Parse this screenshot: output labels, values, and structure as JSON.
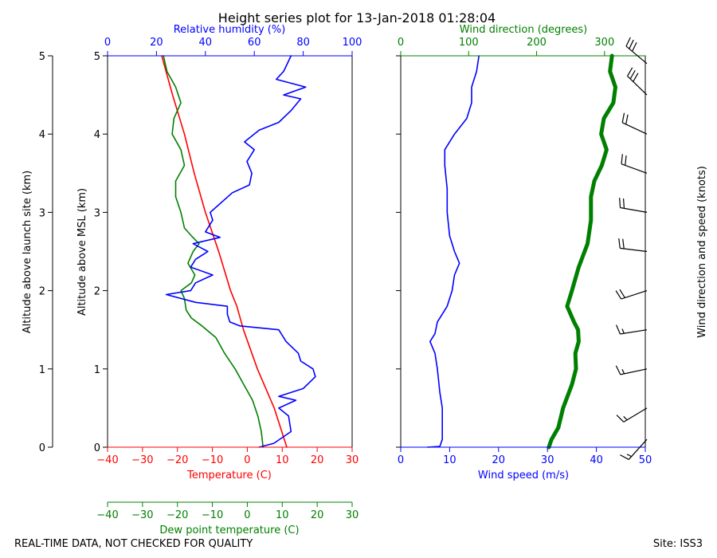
{
  "chart_data": {
    "type": "line",
    "title": "Height series plot for 13-Jan-2018 01:28:04",
    "colors": {
      "temperature": "#ff0000",
      "dewpoint": "#008000",
      "humidity": "#0000ff",
      "wind_speed": "#0000ff",
      "wind_direction": "#008000",
      "barb": "#000000",
      "axis": "#000000"
    },
    "altitude_axes": {
      "launch_label": "Altitude above launch site (km)",
      "msl_label": "Altitude above MSL (km)",
      "ticks": [
        "0",
        "1",
        "2",
        "3",
        "4",
        "5"
      ],
      "range": [
        0,
        5
      ]
    },
    "temperature_axis": {
      "label": "Temperature (C)",
      "range": [
        -40,
        30
      ],
      "ticks": [
        "−40",
        "−30",
        "−20",
        "−10",
        "0",
        "10",
        "20",
        "30"
      ]
    },
    "dewpoint_axis": {
      "label": "Dew point temperature (C)",
      "range": [
        -40,
        30
      ],
      "ticks": [
        "−40",
        "−30",
        "−20",
        "−10",
        "0",
        "10",
        "20",
        "30"
      ]
    },
    "humidity_axis": {
      "label": "Relative humidity (%)",
      "range": [
        0,
        100
      ],
      "ticks": [
        "0",
        "20",
        "40",
        "60",
        "80",
        "100"
      ]
    },
    "wind_speed_axis": {
      "label": "Wind speed (m/s)",
      "range": [
        0,
        50
      ],
      "ticks": [
        "0",
        "10",
        "20",
        "30",
        "40",
        "50"
      ]
    },
    "wind_direction_axis": {
      "label": "Wind direction (degrees)",
      "range": [
        0,
        360
      ],
      "ticks": [
        "0",
        "100",
        "200",
        "300"
      ]
    },
    "barb_label": "Wind direction and speed (knots)",
    "series": [
      {
        "name": "Temperature",
        "axis": "temperature",
        "alt_km": [
          0,
          0.5,
          1,
          1.5,
          1.8,
          2,
          2.5,
          3,
          3.5,
          4,
          4.5,
          5
        ],
        "values": [
          11.3,
          7.7,
          2.9,
          -1.1,
          -3,
          -4.8,
          -8.2,
          -12,
          -15.2,
          -18,
          -21.4,
          -24.5
        ]
      },
      {
        "name": "Dew point",
        "axis": "dewpoint",
        "alt_km": [
          0,
          0.2,
          0.4,
          0.6,
          0.8,
          1,
          1.2,
          1.4,
          1.55,
          1.65,
          1.75,
          1.9,
          2,
          2.1,
          2.2,
          2.35,
          2.5,
          2.6,
          2.7,
          2.8,
          3,
          3.2,
          3.4,
          3.6,
          3.8,
          4,
          4.2,
          4.4,
          4.6,
          4.8,
          5
        ],
        "values": [
          4.5,
          4,
          3,
          1.5,
          -1,
          -3.5,
          -6.5,
          -9,
          -13,
          -16,
          -17.5,
          -18,
          -19,
          -16,
          -15,
          -17,
          -15.5,
          -13.8,
          -16,
          -18,
          -19,
          -20.5,
          -20.5,
          -18,
          -19,
          -21.5,
          -21,
          -19,
          -20.5,
          -23,
          -24
        ]
      },
      {
        "name": "Relative humidity",
        "axis": "humidity",
        "alt_km": [
          0,
          0.05,
          0.2,
          0.4,
          0.5,
          0.6,
          0.65,
          0.75,
          0.9,
          1,
          1.1,
          1.2,
          1.35,
          1.5,
          1.55,
          1.6,
          1.7,
          1.8,
          1.85,
          1.95,
          2,
          2.1,
          2.2,
          2.3,
          2.4,
          2.5,
          2.6,
          2.68,
          2.75,
          2.9,
          3,
          3.25,
          3.35,
          3.5,
          3.65,
          3.8,
          3.9,
          4.05,
          4.15,
          4.3,
          4.45,
          4.5,
          4.6,
          4.7,
          4.8,
          5
        ],
        "values": [
          62,
          68,
          75,
          74,
          70,
          77,
          70,
          80,
          85,
          84,
          79,
          78,
          73,
          70,
          54,
          50,
          49,
          49,
          36,
          24,
          34,
          36,
          43,
          34,
          36,
          41,
          35,
          46,
          40,
          43,
          42,
          51,
          58,
          59,
          57,
          60,
          56,
          62,
          70,
          75,
          79,
          72,
          81,
          69,
          72,
          75
        ]
      },
      {
        "name": "Wind speed",
        "axis": "wind_speed",
        "alt_km": [
          0,
          0.01,
          0.1,
          0.3,
          0.5,
          0.7,
          1,
          1.2,
          1.35,
          1.45,
          1.6,
          1.8,
          2,
          2.2,
          2.35,
          2.5,
          2.7,
          3,
          3.3,
          3.6,
          3.8,
          4,
          4.2,
          4.4,
          4.6,
          4.8,
          5
        ],
        "values": [
          5.5,
          8,
          8.5,
          8.5,
          8.5,
          8,
          7.5,
          7,
          6,
          7,
          7.5,
          9.5,
          10.5,
          11,
          12,
          11,
          10,
          9.5,
          9.5,
          9,
          9,
          11,
          13.5,
          14.5,
          14.5,
          15.5,
          16
        ]
      },
      {
        "name": "Wind direction",
        "axis": "wind_direction",
        "alt_km": [
          0,
          0.1,
          0.25,
          0.5,
          0.8,
          1,
          1.2,
          1.35,
          1.5,
          1.6,
          1.8,
          2,
          2.3,
          2.6,
          2.9,
          3.2,
          3.4,
          3.6,
          3.8,
          4,
          4.2,
          4.4,
          4.6,
          4.8,
          5
        ],
        "values": [
          218,
          222,
          232,
          239,
          252,
          258,
          257,
          262,
          261,
          255,
          245,
          252,
          262,
          275,
          280,
          280,
          285,
          296,
          303,
          295,
          299,
          313,
          316,
          308,
          311
        ]
      }
    ],
    "barbs": [
      {
        "alt_km": 0.1,
        "direction_deg": 222,
        "speed_kt": 16
      },
      {
        "alt_km": 0.5,
        "direction_deg": 239,
        "speed_kt": 17
      },
      {
        "alt_km": 1.0,
        "direction_deg": 258,
        "speed_kt": 15
      },
      {
        "alt_km": 1.5,
        "direction_deg": 261,
        "speed_kt": 13
      },
      {
        "alt_km": 2.0,
        "direction_deg": 252,
        "speed_kt": 20
      },
      {
        "alt_km": 2.5,
        "direction_deg": 277,
        "speed_kt": 21
      },
      {
        "alt_km": 3.0,
        "direction_deg": 280,
        "speed_kt": 18
      },
      {
        "alt_km": 3.5,
        "direction_deg": 290,
        "speed_kt": 18
      },
      {
        "alt_km": 4.0,
        "direction_deg": 295,
        "speed_kt": 21
      },
      {
        "alt_km": 4.5,
        "direction_deg": 314,
        "speed_kt": 28
      },
      {
        "alt_km": 4.9,
        "direction_deg": 310,
        "speed_kt": 30
      }
    ]
  },
  "footer": {
    "left_note": "REAL-TIME DATA, NOT CHECKED FOR QUALITY",
    "site": "Site: ISS3"
  }
}
